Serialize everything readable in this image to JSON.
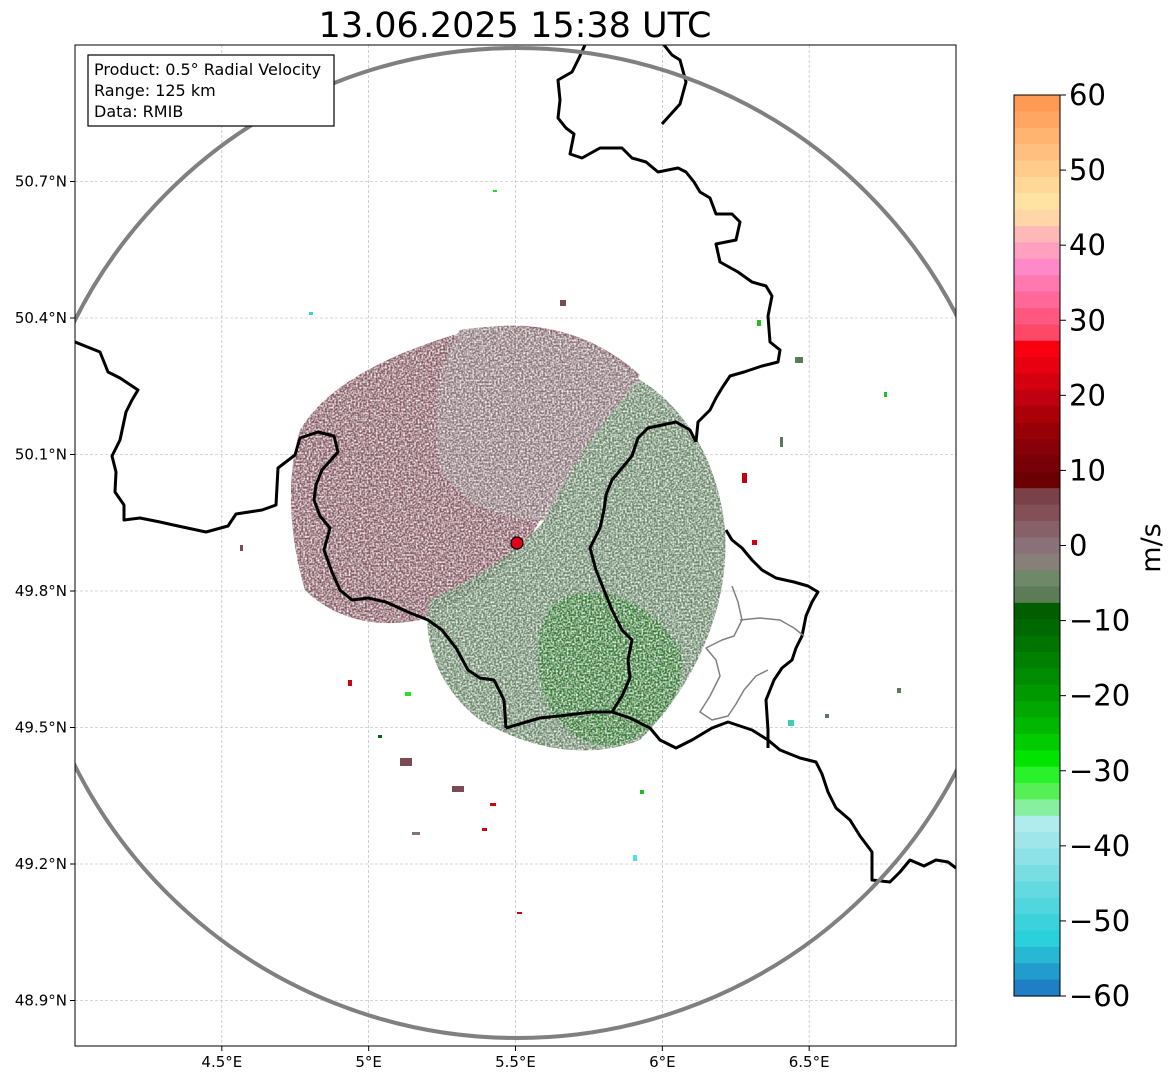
{
  "title": "13.06.2025 15:38 UTC",
  "info_box": {
    "product": "Product: 0.5° Radial Velocity",
    "range": "Range: 125 km",
    "data": "Data: RMIB"
  },
  "map": {
    "lon_range": [
      4.0,
      7.0
    ],
    "lat_range": [
      48.8,
      51.0
    ],
    "radar_site": {
      "lon": 5.5,
      "lat": 49.915
    },
    "lon_ticks": [
      {
        "lon": 4.5,
        "label": "4.5°E"
      },
      {
        "lon": 5.0,
        "label": "5°E"
      },
      {
        "lon": 5.5,
        "label": "5.5°E"
      },
      {
        "lon": 6.0,
        "label": "6°E"
      },
      {
        "lon": 6.5,
        "label": "6.5°E"
      }
    ],
    "lat_ticks": [
      {
        "lat": 48.9,
        "label": "48.9°N"
      },
      {
        "lat": 49.2,
        "label": "49.2°N"
      },
      {
        "lat": 49.5,
        "label": "49.5°N"
      },
      {
        "lat": 49.8,
        "label": "49.8°N"
      },
      {
        "lat": 50.1,
        "label": "50.1°N"
      },
      {
        "lat": 50.4,
        "label": "50.4°N"
      },
      {
        "lat": 50.7,
        "label": "50.7°N"
      }
    ],
    "colors": {
      "range_ring": "#808080",
      "border": "#000000",
      "sub_border": "#808080",
      "site_marker": "#e0001b",
      "inbound_green": "#5a7a5a",
      "outbound_maroon": "#7a4a55"
    },
    "grid": true
  },
  "colorbar": {
    "label": "m/s",
    "ticks": [
      "60",
      "50",
      "40",
      "30",
      "20",
      "10",
      "0",
      "−10",
      "−20",
      "−30",
      "−40",
      "−50",
      "−60"
    ],
    "colors": [
      "#ff9a55",
      "#ffa662",
      "#ffb46f",
      "#ffc07f",
      "#ffcc8b",
      "#ffd898",
      "#ffe3a2",
      "#ffd6a8",
      "#ffb8b8",
      "#ffa0c0",
      "#ff88c8",
      "#ff78b0",
      "#ff6898",
      "#ff5880",
      "#ff4868",
      "#f80010",
      "#e80010",
      "#d40010",
      "#c00010",
      "#ac0008",
      "#980008",
      "#880008",
      "#780008",
      "#6a0000",
      "#7a4248",
      "#845058",
      "#886068",
      "#8a7078",
      "#888078",
      "#6e8868",
      "#5c7c58",
      "#005e00",
      "#006800",
      "#007400",
      "#008000",
      "#008c00",
      "#009a00",
      "#00a800",
      "#00b800",
      "#00cc00",
      "#00e400",
      "#2af22a",
      "#56f056",
      "#86f0a0",
      "#b0ecee",
      "#9ee6ea",
      "#8ce2e6",
      "#78dee2",
      "#64dae0",
      "#50d6de",
      "#3cd2dc",
      "#2ad0dc",
      "#28b8d4",
      "#229ccc",
      "#1f7fc4"
    ]
  }
}
